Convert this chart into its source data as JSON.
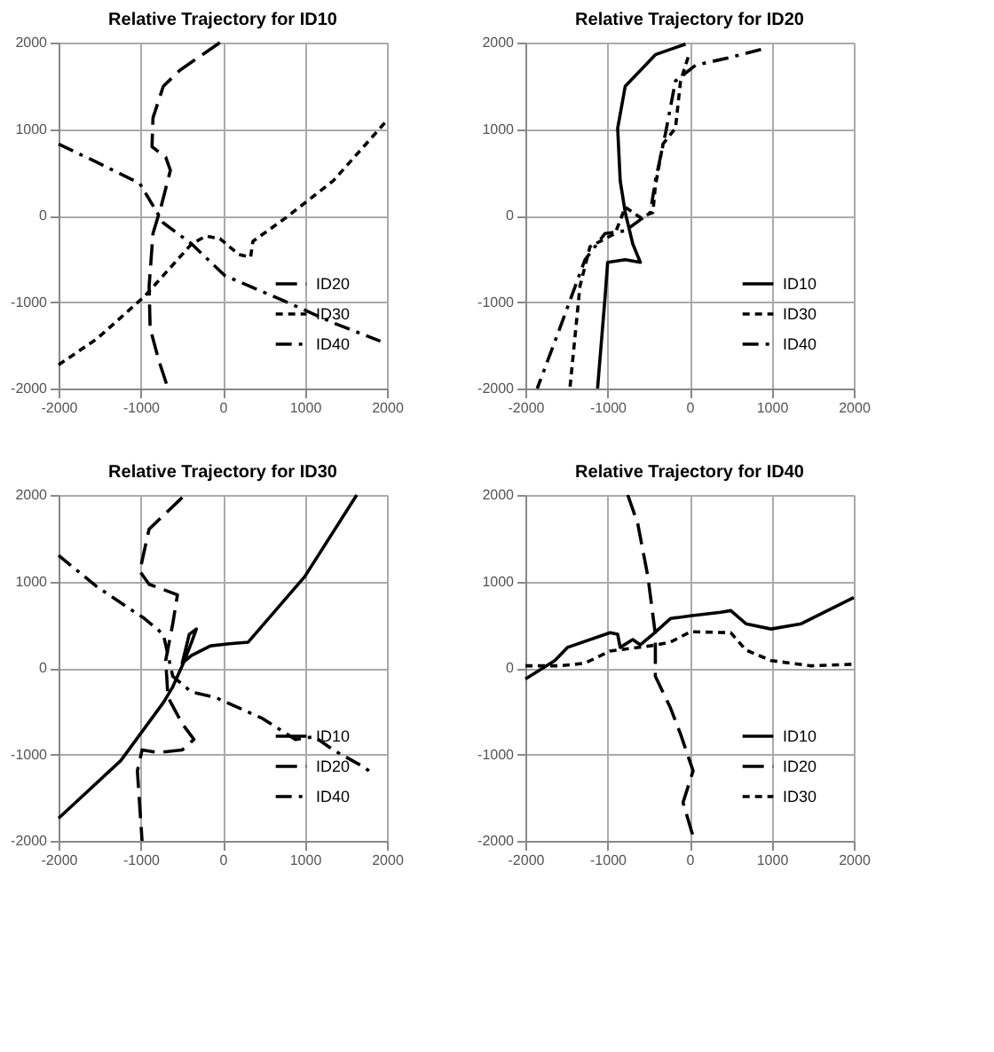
{
  "chart_data": [
    {
      "type": "line",
      "title": "Relative Trajectory for ID10",
      "xlim": [
        -2000,
        2000
      ],
      "ylim": [
        -2000,
        2000
      ],
      "xticks": [
        -2000,
        -1000,
        0,
        1000,
        2000
      ],
      "yticks": [
        -2000,
        -1000,
        0,
        1000,
        2000
      ],
      "grid": true,
      "legend": "bottom right",
      "series": [
        {
          "name": "ID20",
          "color": "#000000",
          "line_style": "dashed",
          "x": [
            -35,
            -523,
            -724,
            -850,
            -862,
            -695,
            -638,
            -753,
            -850,
            -897,
            -885,
            -782,
            -667
          ],
          "values": [
            2000,
            1680,
            1495,
            1130,
            796,
            675,
            523,
            97,
            -207,
            -815,
            -1300,
            -1666,
            -2000
          ]
        },
        {
          "name": "ID30",
          "color": "#000000",
          "line_style": "dotted",
          "x": [
            -2000,
            -1529,
            -954,
            -379,
            -207,
            -34,
            195,
            339,
            368,
            770,
            1345,
            2000
          ],
          "values": [
            -1726,
            -1422,
            -936,
            -328,
            -237,
            -267,
            -450,
            -480,
            -298,
            -24,
            401,
            1100
          ]
        },
        {
          "name": "ID40",
          "color": "#000000",
          "line_style": "dashdot",
          "x": [
            -2000,
            -1529,
            -1011,
            -724,
            -379,
            23,
            770,
            1345,
            1920
          ],
          "values": [
            827,
            614,
            371,
            -85,
            -328,
            -693,
            -997,
            -1240,
            -1453
          ]
        }
      ]
    },
    {
      "type": "line",
      "title": "Relative Trajectory for ID20",
      "xlim": [
        -2000,
        2000
      ],
      "ylim": [
        -2000,
        2000
      ],
      "xticks": [
        -2000,
        -1000,
        0,
        1000,
        2000
      ],
      "yticks": [
        -2000,
        -1000,
        0,
        1000,
        2000
      ],
      "grid": true,
      "legend": "bottom right",
      "series": [
        {
          "name": "ID10",
          "color": "#000000",
          "line_style": "solid",
          "x": [
            -49,
            -417,
            -784,
            -876,
            -845,
            -784,
            -692,
            -600,
            -784,
            -998,
            -1029,
            -1121
          ],
          "values": [
            1982,
            1860,
            1495,
            1009,
            401,
            36,
            -328,
            -541,
            -511,
            -541,
            -936,
            -2000
          ]
        },
        {
          "name": "ID30",
          "color": "#000000",
          "line_style": "dotted",
          "x": [
            -18,
            -110,
            -172,
            -325,
            -417,
            -447,
            -600,
            -784,
            -907,
            -1213,
            -1335,
            -1458
          ],
          "values": [
            1830,
            1556,
            1009,
            827,
            340,
            36,
            -24,
            97,
            -207,
            -359,
            -815,
            -2000
          ]
        },
        {
          "name": "ID40",
          "color": "#000000",
          "line_style": "dashdot",
          "x": [
            870,
            502,
            74,
            -172,
            -294,
            -417,
            -478,
            -784,
            -1029,
            -1274,
            -1580,
            -1856
          ],
          "values": [
            1921,
            1830,
            1739,
            1556,
            948,
            401,
            36,
            -176,
            -207,
            -511,
            -1301,
            -2000
          ]
        }
      ]
    },
    {
      "type": "line",
      "title": "Relative Trajectory for ID30",
      "xlim": [
        -2000,
        2000
      ],
      "ylim": [
        -2000,
        2000
      ],
      "xticks": [
        -2000,
        -1000,
        0,
        1000,
        2000
      ],
      "yticks": [
        -2000,
        -1000,
        0,
        1000,
        2000
      ],
      "grid": true,
      "legend": "bottom right",
      "series": [
        {
          "name": "ID10",
          "color": "#000000",
          "line_style": "solid",
          "x": [
            -2000,
            -1241,
            -724,
            -609,
            -466,
            -379,
            -322,
            -408,
            -494,
            -379,
            -149,
            80,
            310,
            1000,
            1632
          ],
          "values": [
            -1739,
            -1070,
            -401,
            -219,
            85,
            298,
            450,
            389,
            55,
            146,
            255,
            280,
            298,
            1058,
            2000
          ]
        },
        {
          "name": "ID20",
          "color": "#000000",
          "line_style": "dashed",
          "x": [
            -494,
            -897,
            -1011,
            -897,
            -552,
            -609,
            -695,
            -667,
            -494,
            -351,
            -494,
            -782,
            -983,
            -1040,
            -983
          ],
          "values": [
            1970,
            1605,
            1119,
            967,
            845,
            511,
            85,
            -340,
            -644,
            -827,
            -948,
            -979,
            -948,
            -1191,
            -2000
          ]
        },
        {
          "name": "ID40",
          "color": "#000000",
          "line_style": "dashdot",
          "x": [
            -2000,
            -1529,
            -954,
            -724,
            -609,
            -379,
            -92,
            483,
            885,
            1115,
            1345,
            1690,
            1833
          ],
          "values": [
            1301,
            936,
            571,
            389,
            -97,
            -280,
            -340,
            -584,
            -827,
            -796,
            -948,
            -1131,
            -1222
          ]
        }
      ]
    },
    {
      "type": "line",
      "title": "Relative Trajectory for ID40",
      "xlim": [
        -2000,
        2000
      ],
      "ylim": [
        -2000,
        2000
      ],
      "xticks": [
        -2000,
        -1000,
        0,
        1000,
        2000
      ],
      "yticks": [
        -2000,
        -1000,
        0,
        1000,
        2000
      ],
      "grid": true,
      "legend": "bottom right",
      "series": [
        {
          "name": "ID10",
          "color": "#000000",
          "line_style": "solid",
          "x": [
            -2000,
            -1642,
            -1488,
            -968,
            -876,
            -845,
            -692,
            -600,
            -447,
            -233,
            12,
            380,
            502,
            686,
            992,
            1360,
            2000
          ],
          "values": [
            -128,
            85,
            237,
            407,
            389,
            237,
            328,
            267,
            389,
            571,
            602,
            644,
            663,
            511,
            450,
            511,
            815
          ]
        },
        {
          "name": "ID20",
          "color": "#000000",
          "line_style": "dashed",
          "x": [
            -753,
            -631,
            -508,
            -417,
            -417,
            -233,
            -110,
            43,
            -80,
            43
          ],
          "values": [
            2000,
            1666,
            1058,
            389,
            -97,
            -462,
            -766,
            -1191,
            -1556,
            -1951
          ]
        },
        {
          "name": "ID30",
          "color": "#000000",
          "line_style": "dotted",
          "x": [
            -2000,
            -1580,
            -1274,
            -968,
            -478,
            -233,
            12,
            502,
            686,
            992,
            1482,
            2000
          ],
          "values": [
            24,
            24,
            55,
            195,
            255,
            298,
            419,
            407,
            207,
            85,
            24,
            43
          ]
        }
      ]
    }
  ]
}
